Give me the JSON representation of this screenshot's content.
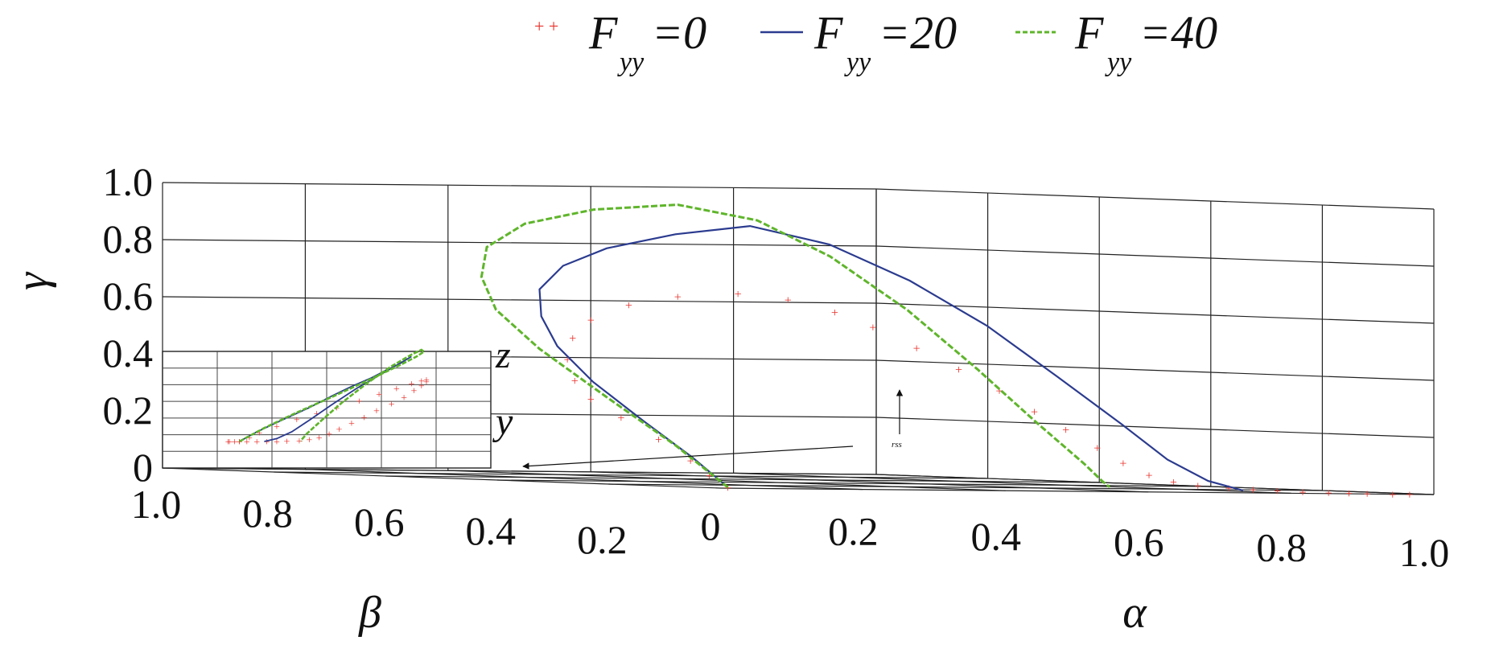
{
  "chart_data": {
    "type": "line",
    "projection": "3d",
    "xlabel": "α",
    "ylabel": "β",
    "zlabel": "γ",
    "xlim": [
      0,
      1
    ],
    "ylim": [
      0,
      1
    ],
    "zlim": [
      0,
      1
    ],
    "grid": true,
    "legend_position": "top",
    "x_ticks": [
      "0",
      "0.2",
      "0.4",
      "0.6",
      "0.8",
      "1.0"
    ],
    "y_ticks": [
      "1.0",
      "0.8",
      "0.6",
      "0.4",
      "0.2"
    ],
    "z_ticks": [
      "0",
      "0.2",
      "0.4",
      "0.6",
      "0.8",
      "1.0"
    ],
    "legend": [
      {
        "prefix": "F",
        "sub": "yy",
        "suffix": "=0"
      },
      {
        "prefix": "F",
        "sub": "yy",
        "suffix": "=20"
      },
      {
        "prefix": "F",
        "sub": "yy",
        "suffix": "=40"
      }
    ],
    "series": [
      {
        "name": "Fyy=0",
        "style": "markers",
        "color": "#e8302a",
        "points": [
          [
            0.05,
            0.05,
            0.0
          ],
          [
            0.055,
            0.09,
            0.04
          ],
          [
            0.06,
            0.13,
            0.09
          ],
          [
            0.07,
            0.2,
            0.16
          ],
          [
            0.08,
            0.28,
            0.23
          ],
          [
            0.1,
            0.36,
            0.29
          ],
          [
            0.14,
            0.44,
            0.35
          ],
          [
            0.2,
            0.53,
            0.42
          ],
          [
            0.27,
            0.61,
            0.49
          ],
          [
            0.35,
            0.68,
            0.55
          ],
          [
            0.45,
            0.74,
            0.6
          ],
          [
            0.55,
            0.78,
            0.63
          ],
          [
            0.65,
            0.8,
            0.64
          ],
          [
            0.72,
            0.8,
            0.62
          ],
          [
            0.77,
            0.78,
            0.58
          ],
          [
            0.8,
            0.75,
            0.53
          ],
          [
            0.83,
            0.71,
            0.46
          ],
          [
            0.85,
            0.66,
            0.39
          ],
          [
            0.86,
            0.6,
            0.32
          ],
          [
            0.87,
            0.55,
            0.25
          ],
          [
            0.875,
            0.5,
            0.19
          ],
          [
            0.88,
            0.45,
            0.13
          ],
          [
            0.885,
            0.41,
            0.08
          ],
          [
            0.89,
            0.37,
            0.04
          ],
          [
            0.893,
            0.33,
            0.02
          ],
          [
            0.896,
            0.29,
            0.01
          ],
          [
            0.9,
            0.24,
            0.005
          ],
          [
            0.903,
            0.2,
            0.002
          ],
          [
            0.906,
            0.16,
            0.0
          ],
          [
            0.91,
            0.12,
            0.0
          ],
          [
            0.915,
            0.08,
            0.0
          ],
          [
            0.92,
            0.05,
            0.0
          ],
          [
            0.93,
            0.03,
            0.0
          ],
          [
            0.95,
            0.01,
            0.0
          ],
          [
            0.97,
            0.005,
            0.0
          ]
        ]
      },
      {
        "name": "Fyy=20",
        "style": "solid",
        "color": "#2b3b8f",
        "points": [
          [
            0.05,
            0.05,
            0.0
          ],
          [
            0.055,
            0.12,
            0.1
          ],
          [
            0.065,
            0.22,
            0.22
          ],
          [
            0.08,
            0.33,
            0.35
          ],
          [
            0.1,
            0.42,
            0.47
          ],
          [
            0.14,
            0.5,
            0.57
          ],
          [
            0.2,
            0.58,
            0.66
          ],
          [
            0.28,
            0.64,
            0.74
          ],
          [
            0.38,
            0.69,
            0.8
          ],
          [
            0.5,
            0.72,
            0.85
          ],
          [
            0.62,
            0.74,
            0.88
          ],
          [
            0.7,
            0.7,
            0.82
          ],
          [
            0.75,
            0.62,
            0.7
          ],
          [
            0.78,
            0.52,
            0.55
          ],
          [
            0.8,
            0.42,
            0.38
          ],
          [
            0.82,
            0.33,
            0.22
          ],
          [
            0.83,
            0.26,
            0.1
          ],
          [
            0.84,
            0.2,
            0.03
          ],
          [
            0.85,
            0.15,
            0.0
          ]
        ]
      },
      {
        "name": "Fyy=40",
        "style": "dashed",
        "color": "#5fb52b",
        "points": [
          [
            0.05,
            0.05,
            0.0
          ],
          [
            0.055,
            0.15,
            0.14
          ],
          [
            0.06,
            0.28,
            0.3
          ],
          [
            0.075,
            0.42,
            0.46
          ],
          [
            0.1,
            0.53,
            0.59
          ],
          [
            0.15,
            0.62,
            0.7
          ],
          [
            0.22,
            0.7,
            0.8
          ],
          [
            0.32,
            0.76,
            0.88
          ],
          [
            0.44,
            0.79,
            0.93
          ],
          [
            0.55,
            0.78,
            0.95
          ],
          [
            0.63,
            0.74,
            0.9
          ],
          [
            0.67,
            0.66,
            0.78
          ],
          [
            0.7,
            0.56,
            0.6
          ],
          [
            0.72,
            0.46,
            0.4
          ],
          [
            0.74,
            0.38,
            0.22
          ],
          [
            0.76,
            0.32,
            0.08
          ],
          [
            0.77,
            0.3,
            0.02
          ],
          [
            0.78,
            0.3,
            0.0
          ]
        ]
      }
    ],
    "inset": {
      "position": "left",
      "xlabel": "y",
      "ylabel": "z"
    },
    "annotations": [
      {
        "text": "rss"
      }
    ]
  }
}
